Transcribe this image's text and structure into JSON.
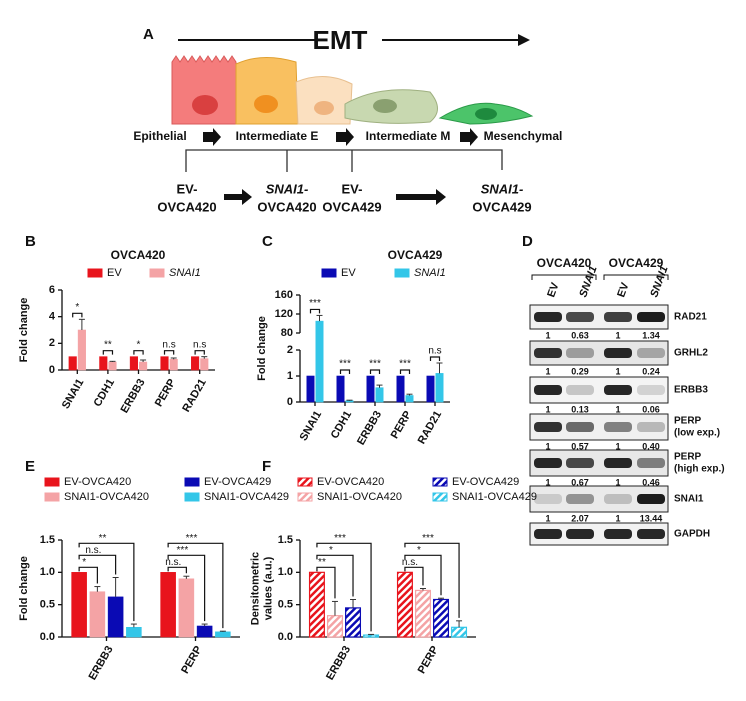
{
  "panel_labels": [
    "A",
    "B",
    "C",
    "D",
    "E",
    "F"
  ],
  "emt_diagram": {
    "title": "EMT",
    "stages": [
      "Epithelial",
      "Intermediate E",
      "Intermediate M",
      "Mesenchymal"
    ],
    "samples": [
      {
        "lines": [
          "EV-",
          "OVCA420"
        ],
        "color": "#e8474b",
        "gene_italic": false
      },
      {
        "lines": [
          "SNAI1-",
          "OVCA420"
        ],
        "color": "#f0a020",
        "gene_italic": true
      },
      {
        "lines": [
          "EV-",
          "OVCA429"
        ],
        "color": "#f0a020",
        "gene_italic": false
      },
      {
        "lines": [
          "SNAI1-",
          "OVCA429"
        ],
        "color": "#1fa64a",
        "gene_italic": true
      }
    ]
  },
  "western_blot": {
    "cell_lines": [
      "OVCA420",
      "OVCA429"
    ],
    "lanes": [
      "EV",
      "SNAI1",
      "EV",
      "SNAI1"
    ],
    "rows": [
      {
        "label": [
          "RAD21"
        ],
        "quant": [
          "1",
          "0.63",
          "1",
          "1.34"
        ]
      },
      {
        "label": [
          "GRHL2"
        ],
        "quant": [
          "1",
          "0.29",
          "1",
          "0.24"
        ]
      },
      {
        "label": [
          "ERBB3"
        ],
        "quant": [
          "1",
          "0.13",
          "1",
          "0.06"
        ]
      },
      {
        "label": [
          "PERP",
          "(low exp.)"
        ],
        "quant": [
          "1",
          "0.57",
          "1",
          "0.40"
        ]
      },
      {
        "label": [
          "PERP",
          "(high exp.)"
        ],
        "quant": [
          "1",
          "0.67",
          "1",
          "0.46"
        ]
      },
      {
        "label": [
          "SNAI1"
        ],
        "quant": [
          "1",
          "2.07",
          "1",
          "13.44"
        ]
      },
      {
        "label": [
          "GAPDH"
        ],
        "quant": []
      }
    ]
  },
  "chart_data": [
    {
      "type": "bar",
      "title": "OVCA420",
      "ylabel": "Fold change",
      "categories": [
        "SNAI1",
        "CDH1",
        "ERBB3",
        "PERP",
        "RAD21"
      ],
      "ylim": [
        0,
        6
      ],
      "yticks": [
        0,
        2,
        4,
        6
      ],
      "series": [
        {
          "name": "EV",
          "color": "#e8141c",
          "values": [
            1,
            1,
            1,
            1,
            1
          ]
        },
        {
          "name": "SNAI1",
          "color": "#f4a3a5",
          "font_style": "italic",
          "values": [
            3.0,
            0.6,
            0.6,
            0.8,
            0.85
          ],
          "errors": [
            0.8,
            0.05,
            0.15,
            0.1,
            0.15
          ]
        }
      ],
      "significance": [
        "*",
        "**",
        "*",
        "n.s",
        "n.s"
      ],
      "legend": "top"
    },
    {
      "type": "bar",
      "title": "OVCA429",
      "ylabel": "Fold change",
      "categories": [
        "SNAI1",
        "CDH1",
        "ERBB3",
        "PERP",
        "RAD21"
      ],
      "ylim": [
        0,
        160
      ],
      "axis_break": [
        2,
        80
      ],
      "yticks": [
        0,
        1,
        2,
        80,
        120,
        160
      ],
      "series": [
        {
          "name": "EV",
          "color": "#0a0ab4",
          "values": [
            1,
            1,
            1,
            1,
            1
          ]
        },
        {
          "name": "SNAI1",
          "color": "#33c6e8",
          "font_style": "italic",
          "values": [
            105,
            0.05,
            0.55,
            0.25,
            1.1
          ],
          "errors": [
            12,
            0.02,
            0.1,
            0.05,
            0.4
          ]
        }
      ],
      "significance": [
        "***",
        "***",
        "***",
        "***",
        "n.s"
      ],
      "legend": "top"
    },
    {
      "type": "bar",
      "ylabel": "Fold change",
      "categories": [
        "ERBB3",
        "PERP"
      ],
      "ylim": [
        0,
        1.5
      ],
      "yticks": [
        {
          "value": 0,
          "label": "0.0"
        },
        0.5,
        {
          "value": 1,
          "label": "1.0"
        },
        1.5
      ],
      "series": [
        {
          "name": "EV-OVCA420",
          "color": "#e8141c",
          "values": [
            1,
            1
          ]
        },
        {
          "name": "SNAI1-OVCA420",
          "color": "#f4a3a5",
          "values": [
            0.7,
            0.9
          ],
          "errors": [
            0.08,
            0.04
          ]
        },
        {
          "name": "EV-OVCA429",
          "color": "#0a0ab4",
          "values": [
            0.62,
            0.17
          ],
          "errors": [
            0.3,
            0.03
          ]
        },
        {
          "name": "SNAI1-OVCA429",
          "color": "#33c6e8",
          "values": [
            0.15,
            0.08
          ],
          "errors": [
            0.05,
            0.01
          ]
        }
      ],
      "significance": [
        [
          "*",
          "n.s.",
          "**"
        ],
        [
          "n.s.",
          "***",
          "***"
        ]
      ],
      "legend": "top"
    },
    {
      "type": "bar",
      "ylabel": [
        "Densitometric",
        "values (a.u.)"
      ],
      "hatch": true,
      "categories": [
        "ERBB3",
        "PERP"
      ],
      "ylim": [
        0,
        1.5
      ],
      "yticks": [
        {
          "value": 0,
          "label": "0.0"
        },
        0.5,
        {
          "value": 1,
          "label": "1.0"
        },
        1.5
      ],
      "series": [
        {
          "name": "EV-OVCA420",
          "color": "#e8141c",
          "values": [
            1,
            1
          ]
        },
        {
          "name": "SNAI1-OVCA420",
          "color": "#f4a3a5",
          "values": [
            0.33,
            0.72
          ],
          "errors": [
            0.22,
            0.03
          ]
        },
        {
          "name": "EV-OVCA429",
          "color": "#0a0ab4",
          "values": [
            0.45,
            0.58
          ],
          "errors": [
            0.13,
            0.02
          ]
        },
        {
          "name": "SNAI1-OVCA429",
          "color": "#33c6e8",
          "values": [
            0.03,
            0.15
          ],
          "errors": [
            0.01,
            0.1
          ]
        }
      ],
      "significance": [
        [
          "**",
          "*",
          "***"
        ],
        [
          "n.s.",
          "*",
          "***"
        ]
      ],
      "legend": "top"
    }
  ]
}
